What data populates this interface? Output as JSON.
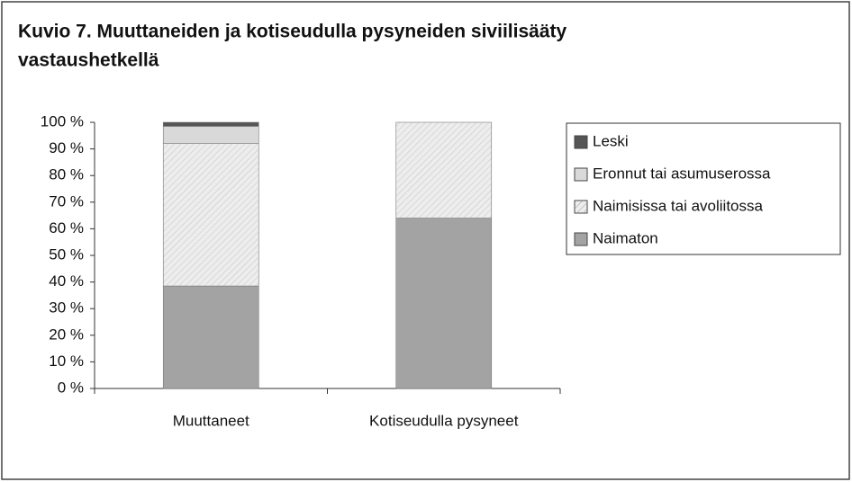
{
  "chart_data": {
    "type": "stacked_bar",
    "title_lines": [
      "Kuvio 7. Muuttaneiden ja kotiseudulla pysyneiden siviilisääty",
      "vastaushetkellä"
    ],
    "categories": [
      "Muuttaneet",
      "Kotiseudulla pysyneet"
    ],
    "series": [
      {
        "name": "Naimaton",
        "color": "#a3a3a3",
        "values": [
          38.5,
          64
        ]
      },
      {
        "name": "Naimisissa tai avoliitossa",
        "color": "#ededed",
        "hatch": true,
        "values": [
          53.5,
          36
        ]
      },
      {
        "name": "Eronnut tai asumuserossa",
        "color": "#d9d9d9",
        "values": [
          6.5,
          0
        ]
      },
      {
        "name": "Leski",
        "color": "#555555",
        "values": [
          1.5,
          0
        ]
      }
    ],
    "ylim": [
      0,
      100
    ],
    "yticks": [
      {
        "value": 0,
        "label": "0 %"
      },
      {
        "value": 10,
        "label": "10 %"
      },
      {
        "value": 20,
        "label": "20 %"
      },
      {
        "value": 30,
        "label": "30 %"
      },
      {
        "value": 40,
        "label": "40 %"
      },
      {
        "value": 50,
        "label": "50 %"
      },
      {
        "value": 60,
        "label": "60 %"
      },
      {
        "value": 70,
        "label": "70 %"
      },
      {
        "value": 80,
        "label": "80 %"
      },
      {
        "value": 90,
        "label": "90 %"
      },
      {
        "value": 100,
        "label": "100 %"
      }
    ],
    "legend": "right"
  }
}
